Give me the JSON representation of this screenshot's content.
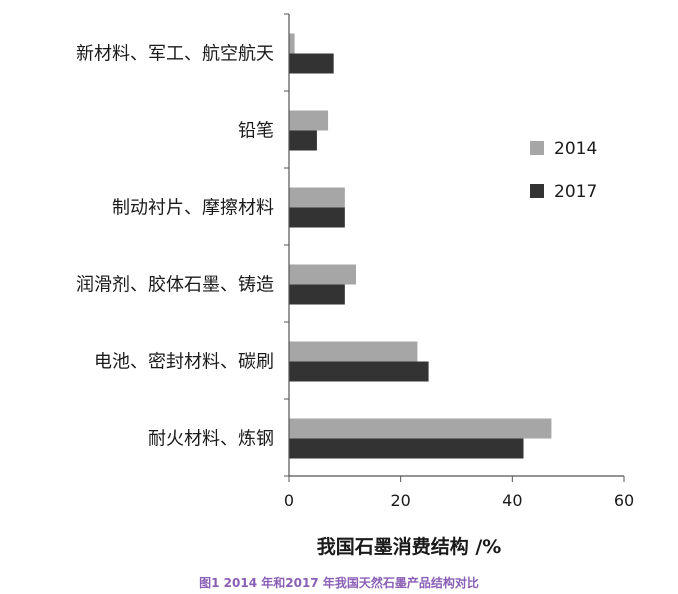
{
  "chart_data": {
    "type": "bar",
    "orientation": "horizontal",
    "categories": [
      "新材料、军工、航空航天",
      "铅笔",
      "制动衬片、摩擦材料",
      "润滑剂、胶体石墨、铸造",
      "电池、密封材料、碳刷",
      "耐火材料、炼钢"
    ],
    "series": [
      {
        "name": "2014",
        "color": "#a6a6a6",
        "values": [
          1,
          7,
          10,
          12,
          23,
          47
        ]
      },
      {
        "name": "2017",
        "color": "#333333",
        "values": [
          8,
          5,
          10,
          10,
          25,
          42
        ]
      }
    ],
    "xlabel": "我国石墨消费结构 /%",
    "xlim": [
      0,
      60
    ],
    "xticks": [
      0,
      20,
      40,
      60
    ],
    "legend_position": "right",
    "grid": false
  },
  "caption": "图1 2014 年和2017 年我国天然石墨产品结构对比"
}
